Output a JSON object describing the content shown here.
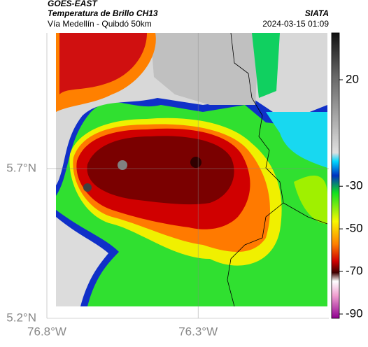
{
  "header": {
    "title": "GOES-EAST",
    "subtitle": "Temperatura de Brillo CH13",
    "region": "Vía Medellín - Quibdó 50km",
    "source": "SIATA",
    "timestamp": "2024-03-15 01:09"
  },
  "map": {
    "xlim": [
      -76.8,
      -75.868
    ],
    "ylim": [
      5.2,
      6.153
    ],
    "xticks": [
      {
        "value": -76.8,
        "label": "76.8°W"
      },
      {
        "value": -76.3,
        "label": "76.3°W"
      }
    ],
    "yticks": [
      {
        "value": 5.2,
        "label": "5.2°N"
      },
      {
        "value": 5.7,
        "label": "5.7°N"
      }
    ],
    "grid": true
  },
  "colorbar": {
    "lim": [
      -92,
      42
    ],
    "ticks": [
      20,
      -30,
      -50,
      -70,
      -90
    ]
  }
}
